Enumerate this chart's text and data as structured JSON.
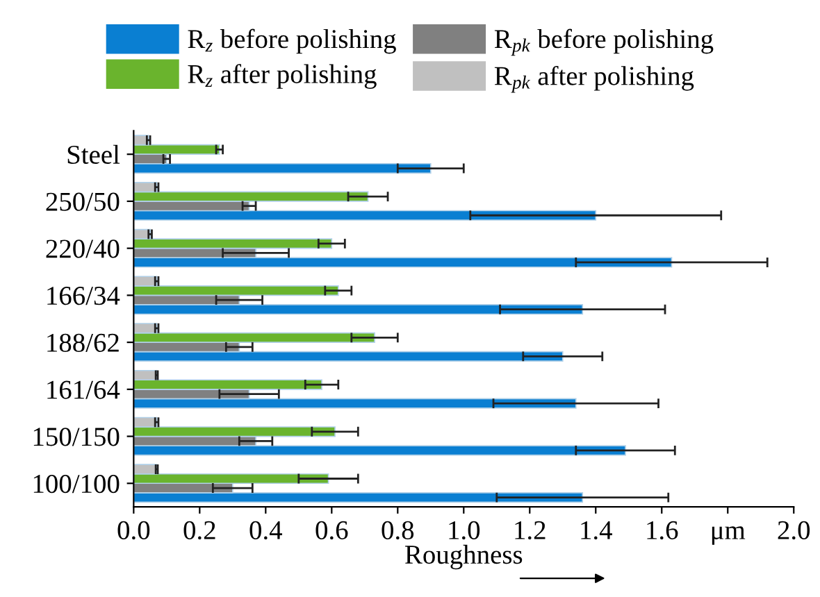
{
  "chart_data": {
    "type": "bar",
    "orientation": "horizontal",
    "xlabel": "Roughness",
    "categories": [
      "Steel",
      "250/50",
      "220/40",
      "166/34",
      "188/62",
      "161/64",
      "150/150",
      "100/100"
    ],
    "series": [
      {
        "name": "R$_{z}$ before polishing",
        "color": "#0a7fd2",
        "values": [
          0.9,
          1.4,
          1.63,
          1.36,
          1.3,
          1.34,
          1.49,
          1.36
        ],
        "errors": [
          0.1,
          0.38,
          0.29,
          0.25,
          0.12,
          0.25,
          0.15,
          0.26
        ]
      },
      {
        "name": "R$_{pk}$ before polishing",
        "color": "#808080",
        "values": [
          0.1,
          0.35,
          0.37,
          0.32,
          0.32,
          0.35,
          0.37,
          0.3
        ],
        "errors": [
          0.01,
          0.02,
          0.1,
          0.07,
          0.04,
          0.09,
          0.05,
          0.06
        ]
      },
      {
        "name": "R$_{z}$ after polishing",
        "color": "#6ab42d",
        "values": [
          0.26,
          0.71,
          0.6,
          0.62,
          0.73,
          0.57,
          0.61,
          0.59
        ],
        "errors": [
          0.01,
          0.06,
          0.04,
          0.04,
          0.07,
          0.05,
          0.07,
          0.09
        ]
      },
      {
        "name": "R$_{pk}$ after polishing",
        "color": "#c0c0c0",
        "values": [
          0.045,
          0.07,
          0.05,
          0.07,
          0.07,
          0.07,
          0.07,
          0.07
        ],
        "errors": [
          0.005,
          0.005,
          0.005,
          0.005,
          0.005,
          0.003,
          0.005,
          0.003
        ]
      }
    ],
    "xlim": [
      0,
      2
    ],
    "xticks": [
      {
        "value": 0,
        "label": "0.0"
      },
      0.2,
      0.4,
      0.6,
      0.8,
      {
        "value": 1,
        "label": "1.0"
      },
      1.2,
      1.4,
      1.6,
      {
        "value": 1.8,
        "label": "μm"
      },
      {
        "value": 2,
        "label": "2.0"
      }
    ],
    "grid": false,
    "legend": "top"
  }
}
